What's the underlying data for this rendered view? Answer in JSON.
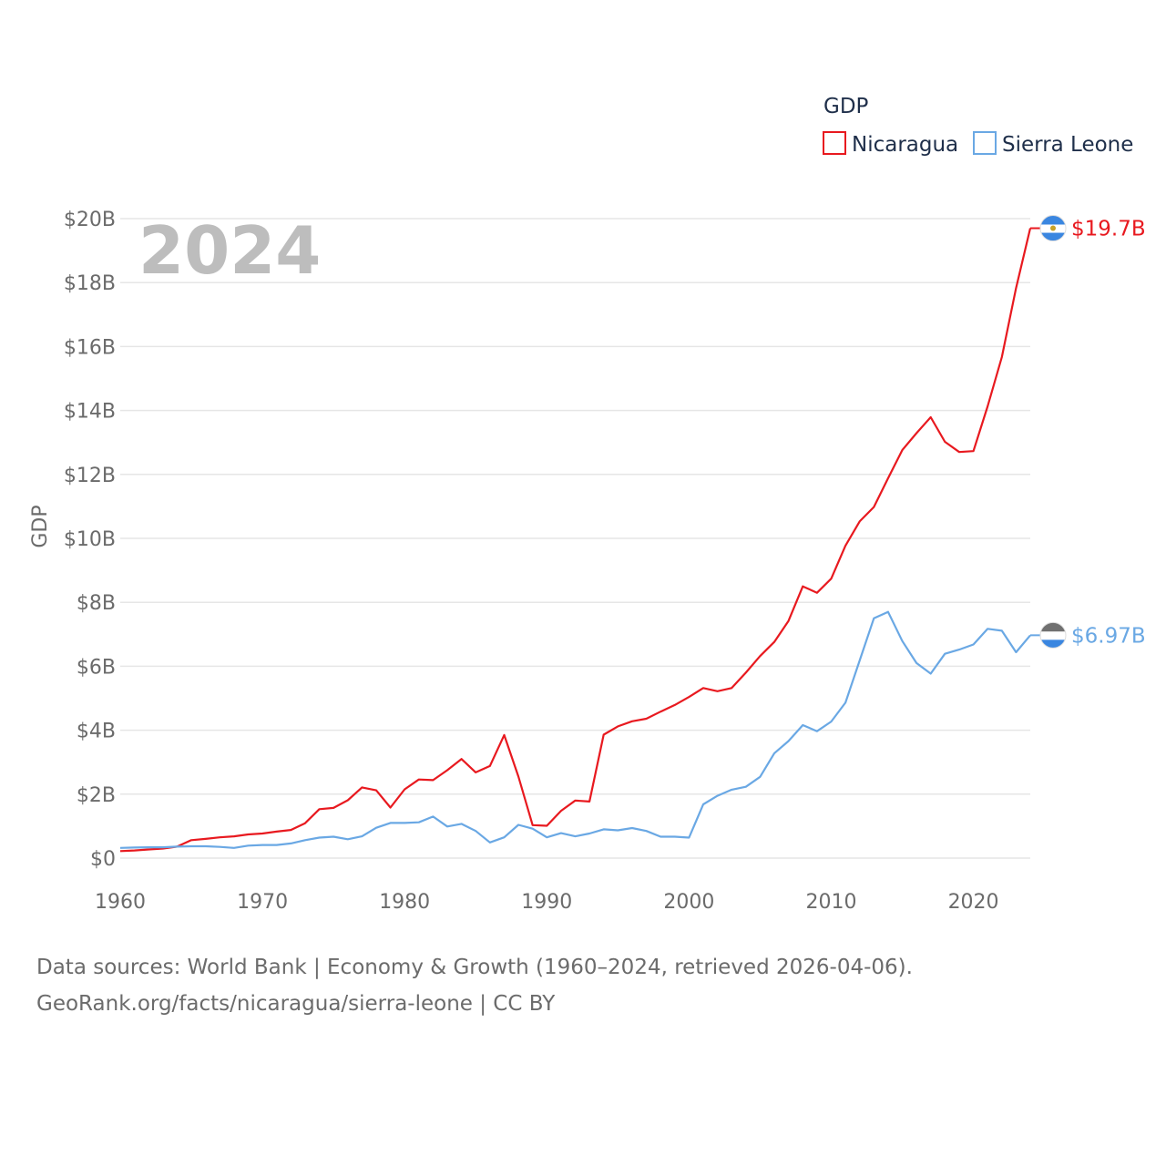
{
  "chart_data": {
    "type": "line",
    "title": "",
    "legend_title": "GDP",
    "year_label": "2024",
    "xlabel": "",
    "ylabel": "GDP",
    "xlim": [
      1960,
      2024
    ],
    "ylim": [
      0,
      20
    ],
    "x_ticks": [
      "1960",
      "1970",
      "1980",
      "1990",
      "2000",
      "2010",
      "2020"
    ],
    "x_tick_values": [
      1960,
      1970,
      1980,
      1990,
      2000,
      2010,
      2020
    ],
    "y_ticks": [
      "$0",
      "$2B",
      "$4B",
      "$6B",
      "$8B",
      "$10B",
      "$12B",
      "$14B",
      "$16B",
      "$18B",
      "$20B"
    ],
    "y_tick_values": [
      0,
      2,
      4,
      6,
      8,
      10,
      12,
      14,
      16,
      18,
      20
    ],
    "value_unit": "billion USD",
    "x": [
      1960,
      1961,
      1962,
      1963,
      1964,
      1965,
      1966,
      1967,
      1968,
      1969,
      1970,
      1971,
      1972,
      1973,
      1974,
      1975,
      1976,
      1977,
      1978,
      1979,
      1980,
      1981,
      1982,
      1983,
      1984,
      1985,
      1986,
      1987,
      1988,
      1989,
      1990,
      1991,
      1992,
      1993,
      1994,
      1995,
      1996,
      1997,
      1998,
      1999,
      2000,
      2001,
      2002,
      2003,
      2004,
      2005,
      2006,
      2007,
      2008,
      2009,
      2010,
      2011,
      2012,
      2013,
      2014,
      2015,
      2016,
      2017,
      2018,
      2019,
      2020,
      2021,
      2022,
      2023,
      2024
    ],
    "series": [
      {
        "name": "Nicaragua",
        "color": "#e8191f",
        "end_label": "$19.7B",
        "values": [
          0.22,
          0.24,
          0.27,
          0.3,
          0.36,
          0.56,
          0.6,
          0.65,
          0.68,
          0.74,
          0.77,
          0.83,
          0.88,
          1.09,
          1.53,
          1.57,
          1.81,
          2.21,
          2.12,
          1.58,
          2.15,
          2.46,
          2.44,
          2.75,
          3.1,
          2.68,
          2.88,
          3.85,
          2.55,
          1.03,
          1.01,
          1.48,
          1.8,
          1.77,
          3.86,
          4.12,
          4.28,
          4.36,
          4.58,
          4.79,
          5.04,
          5.32,
          5.22,
          5.32,
          5.8,
          6.32,
          6.76,
          7.42,
          8.5,
          8.3,
          8.74,
          9.77,
          10.53,
          10.98,
          11.88,
          12.76,
          13.29,
          13.79,
          13.02,
          12.7,
          12.73,
          14.13,
          15.67,
          17.83,
          19.7
        ]
      },
      {
        "name": "Sierra Leone",
        "color": "#6aa8e4",
        "end_label": "$6.97B",
        "values": [
          0.32,
          0.33,
          0.34,
          0.34,
          0.36,
          0.37,
          0.37,
          0.35,
          0.32,
          0.39,
          0.41,
          0.41,
          0.46,
          0.56,
          0.64,
          0.67,
          0.59,
          0.68,
          0.95,
          1.1,
          1.1,
          1.12,
          1.3,
          0.99,
          1.07,
          0.85,
          0.49,
          0.65,
          1.04,
          0.92,
          0.65,
          0.78,
          0.68,
          0.77,
          0.9,
          0.87,
          0.94,
          0.85,
          0.67,
          0.67,
          0.64,
          1.68,
          1.95,
          2.14,
          2.23,
          2.54,
          3.28,
          3.66,
          4.16,
          3.97,
          4.27,
          4.86,
          6.18,
          7.5,
          7.7,
          6.79,
          6.1,
          5.77,
          6.39,
          6.52,
          6.68,
          7.17,
          7.11,
          6.44,
          6.97
        ]
      }
    ]
  },
  "footer": {
    "line1": "Data sources: World Bank | Economy & Growth (1960–2024, retrieved 2026-04-06).",
    "line2": "GeoRank.org/facts/nicaragua/sierra-leone | CC BY"
  }
}
